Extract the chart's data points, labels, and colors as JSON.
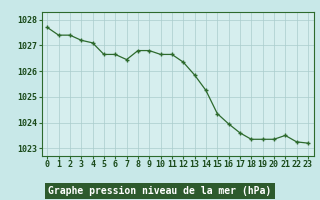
{
  "x": [
    0,
    1,
    2,
    3,
    4,
    5,
    6,
    7,
    8,
    9,
    10,
    11,
    12,
    13,
    14,
    15,
    16,
    17,
    18,
    19,
    20,
    21,
    22,
    23
  ],
  "y": [
    1027.7,
    1027.4,
    1027.4,
    1027.2,
    1027.1,
    1026.65,
    1026.65,
    1026.45,
    1026.8,
    1026.8,
    1026.65,
    1026.65,
    1026.35,
    1025.85,
    1025.25,
    1024.35,
    1023.95,
    1023.6,
    1023.35,
    1023.35,
    1023.35,
    1023.5,
    1023.25,
    1023.2
  ],
  "line_color": "#2d6a2d",
  "marker_color": "#2d6a2d",
  "bg_color": "#c8e8e8",
  "plot_bg_color": "#d6eeee",
  "grid_color": "#aacccc",
  "xlabel": "Graphe pression niveau de la mer (hPa)",
  "xlabel_color": "#ffffff",
  "xlabel_bg": "#2d5a2d",
  "tick_label_color": "#1a4a1a",
  "ylim_min": 1022.7,
  "ylim_max": 1028.3,
  "yticks": [
    1023,
    1024,
    1025,
    1026,
    1027,
    1028
  ],
  "xticks": [
    0,
    1,
    2,
    3,
    4,
    5,
    6,
    7,
    8,
    9,
    10,
    11,
    12,
    13,
    14,
    15,
    16,
    17,
    18,
    19,
    20,
    21,
    22,
    23
  ],
  "spine_color": "#2d6a2d",
  "font_size_xlabel": 7.0,
  "font_size_ticks": 6.0
}
